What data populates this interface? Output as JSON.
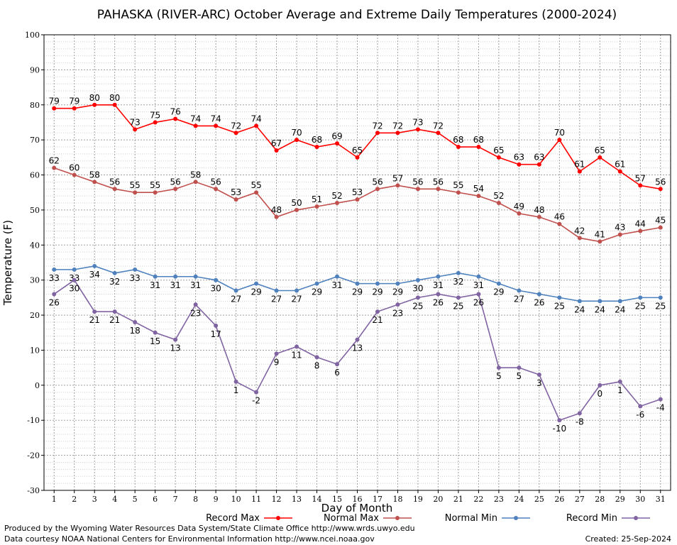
{
  "chart_data": {
    "type": "line",
    "title": "PAHASKA (RIVER-ARC) October Average and Extreme Daily Temperatures (2000-2024)",
    "xlabel": "Day of Month",
    "ylabel": "Temperature (F)",
    "ylim": [
      -30,
      100
    ],
    "yticks": [
      -30,
      -20,
      -10,
      0,
      10,
      20,
      30,
      40,
      50,
      60,
      70,
      80,
      90,
      100
    ],
    "x": [
      1,
      2,
      3,
      4,
      5,
      6,
      7,
      8,
      9,
      10,
      11,
      12,
      13,
      14,
      15,
      16,
      17,
      18,
      19,
      20,
      21,
      22,
      23,
      24,
      25,
      26,
      27,
      28,
      29,
      30,
      31
    ],
    "grid": true,
    "legend_position": "bottom",
    "series": [
      {
        "name": "Record Max",
        "color": "#ff0000",
        "label_pos": "above",
        "values": [
          79,
          79,
          80,
          80,
          73,
          75,
          76,
          74,
          74,
          72,
          74,
          67,
          70,
          68,
          69,
          65,
          72,
          72,
          73,
          72,
          68,
          68,
          65,
          63,
          63,
          70,
          61,
          65,
          61,
          57,
          56
        ]
      },
      {
        "name": "Normal Max",
        "color": "#c0504d",
        "label_pos": "above",
        "values": [
          62,
          60,
          58,
          56,
          55,
          55,
          56,
          58,
          56,
          53,
          55,
          48,
          50,
          51,
          52,
          53,
          56,
          57,
          56,
          56,
          55,
          54,
          52,
          49,
          48,
          46,
          42,
          41,
          43,
          44,
          45
        ]
      },
      {
        "name": "Normal Min",
        "color": "#4f81bd",
        "label_pos": "below",
        "values": [
          33,
          33,
          34,
          32,
          33,
          31,
          31,
          31,
          30,
          27,
          29,
          27,
          27,
          29,
          31,
          29,
          29,
          29,
          30,
          31,
          32,
          31,
          29,
          27,
          26,
          25,
          24,
          24,
          24,
          25,
          25
        ]
      },
      {
        "name": "Record Min",
        "color": "#8064a2",
        "label_pos": "below",
        "values": [
          26,
          30,
          21,
          21,
          18,
          15,
          13,
          23,
          17,
          1,
          -2,
          9,
          11,
          8,
          6,
          13,
          21,
          23,
          25,
          26,
          25,
          26,
          5,
          5,
          3,
          -10,
          -8,
          0,
          1,
          -6,
          -4
        ]
      }
    ]
  },
  "footer": {
    "produced_by": "Produced by the Wyoming Water Resources Data System/State Climate Office http://www.wrds.uwyo.edu",
    "courtesy": "Data courtesy NOAA National Centers for Environmental Information http://www.ncei.noaa.gov",
    "created": "Created:  25-Sep-2024"
  }
}
